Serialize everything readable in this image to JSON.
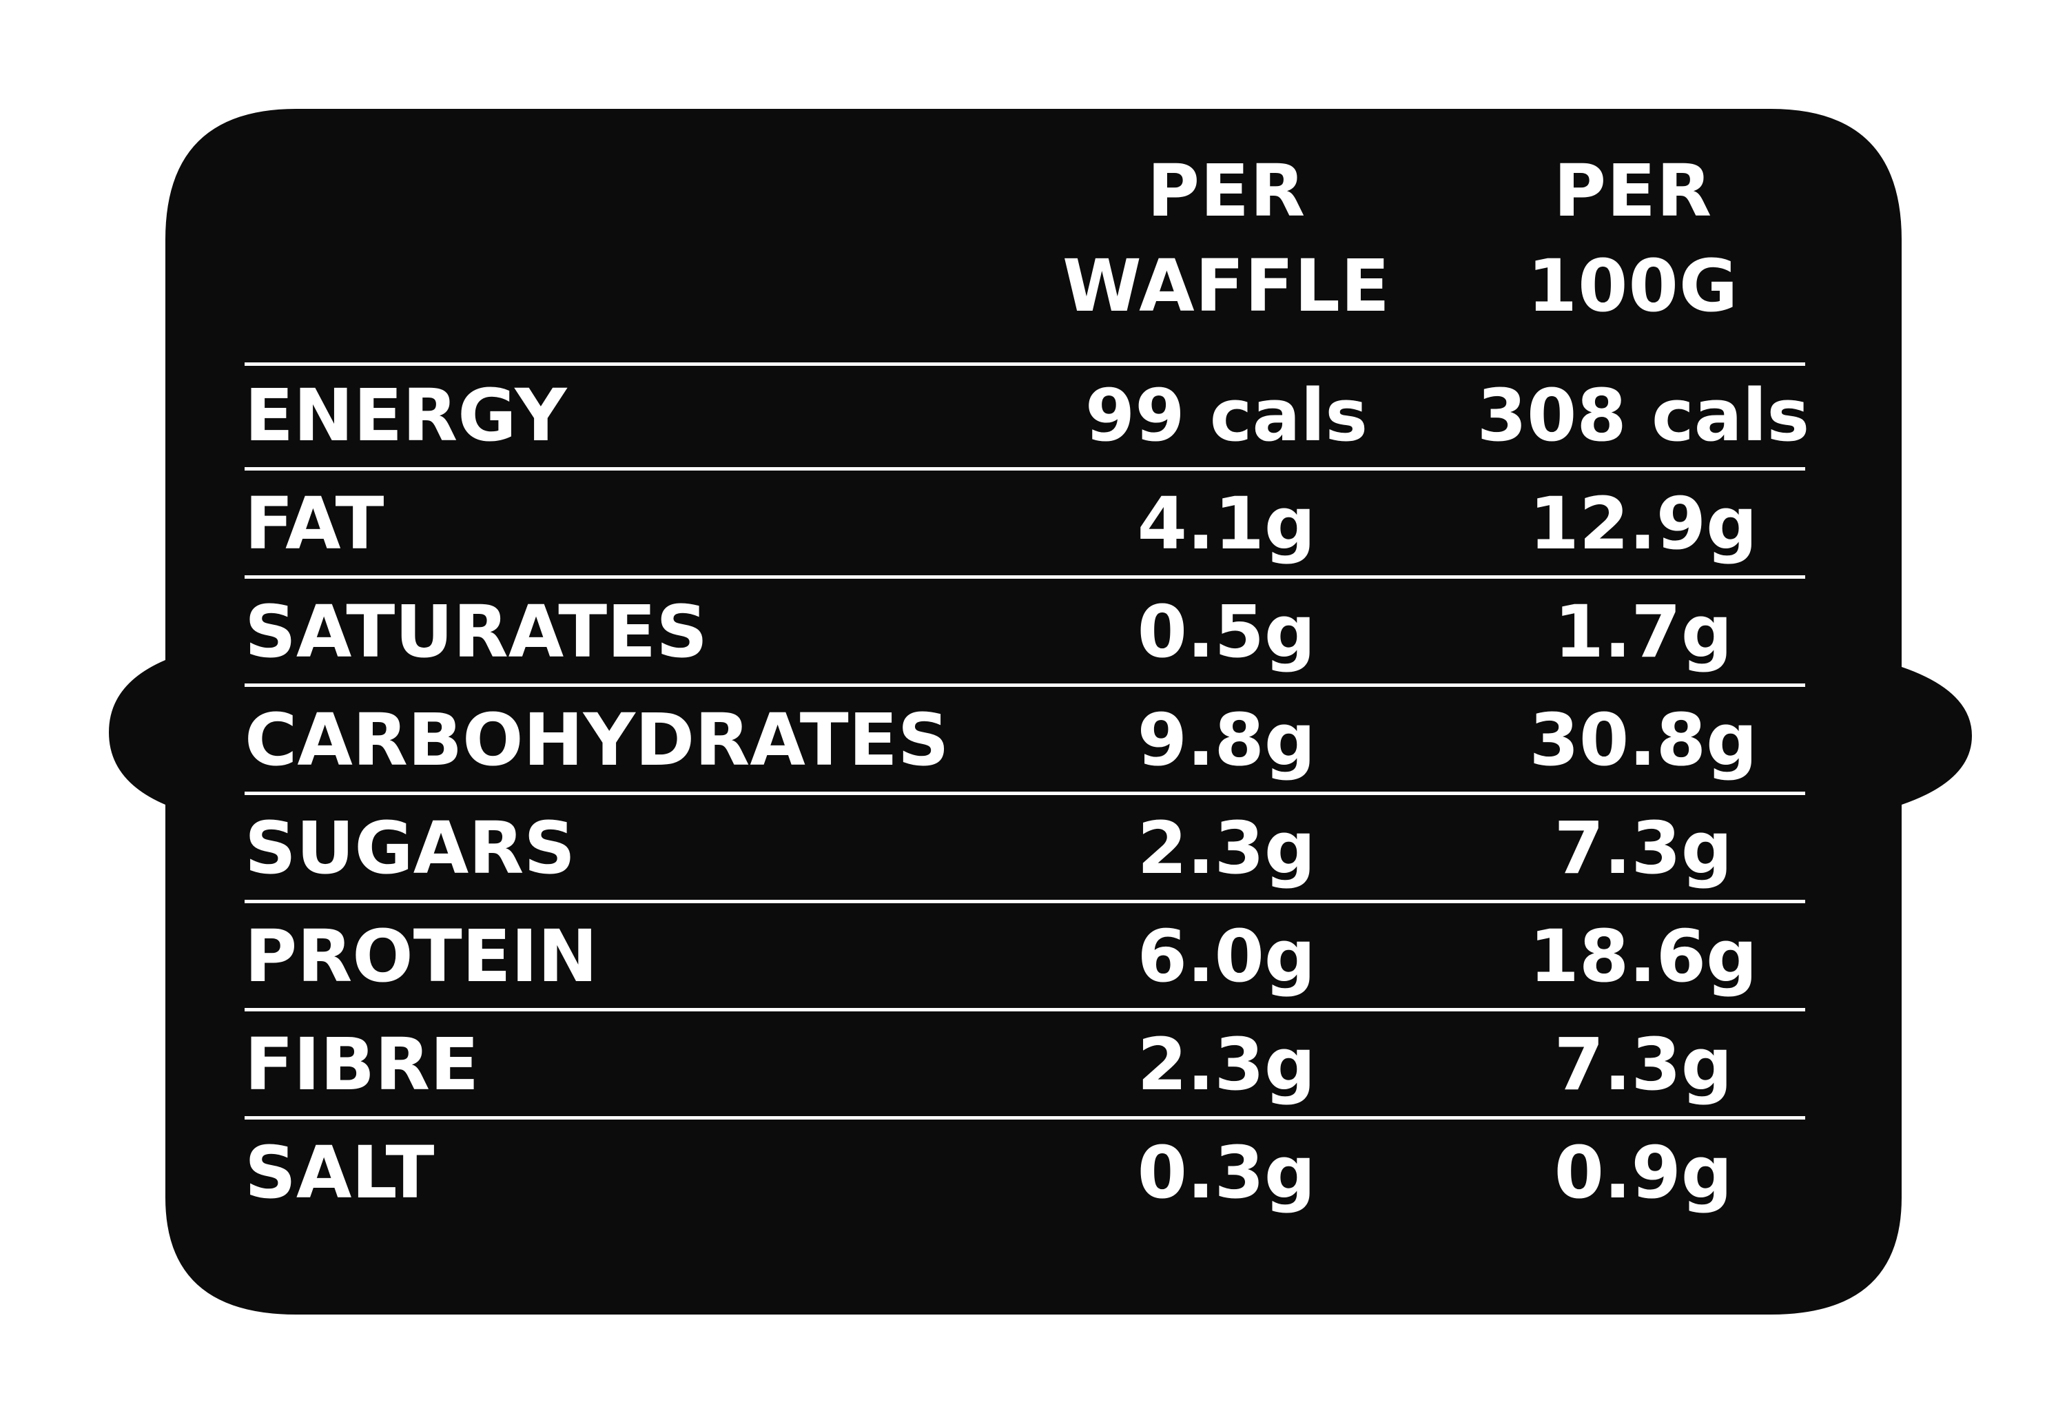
{
  "colors": {
    "panel": "#0c0c0c",
    "text": "#ffffff",
    "background": "#ffffff"
  },
  "header": {
    "col1": [
      "PER",
      "WAFFLE"
    ],
    "col2": [
      "PER",
      "100G"
    ]
  },
  "rows": [
    {
      "nutrient": "ENERGY",
      "per_waffle": "99 cals",
      "per_100g": "308 cals"
    },
    {
      "nutrient": "FAT",
      "per_waffle": "4.1g",
      "per_100g": "12.9g"
    },
    {
      "nutrient": "SATURATES",
      "per_waffle": "0.5g",
      "per_100g": "1.7g"
    },
    {
      "nutrient": "CARBOHYDRATES",
      "per_waffle": "9.8g",
      "per_100g": "30.8g"
    },
    {
      "nutrient": "SUGARS",
      "per_waffle": "2.3g",
      "per_100g": "7.3g"
    },
    {
      "nutrient": "PROTEIN",
      "per_waffle": "6.0g",
      "per_100g": "18.6g"
    },
    {
      "nutrient": "FIBRE",
      "per_waffle": "2.3g",
      "per_100g": "7.3g"
    },
    {
      "nutrient": "SALT",
      "per_waffle": "0.3g",
      "per_100g": "0.9g"
    }
  ]
}
